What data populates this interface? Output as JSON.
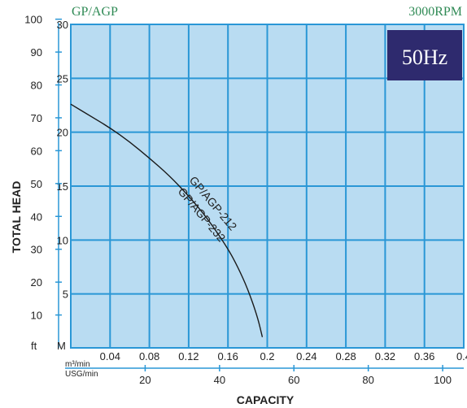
{
  "header": {
    "model": "GP/AGP",
    "speed": "3000RPM"
  },
  "badge": {
    "text": "50Hz",
    "bg": "#2e2a6e",
    "fg": "#ffffff"
  },
  "colors": {
    "plot_bg": "#b9dcf2",
    "grid": "#2a97d6",
    "curve": "#1a1a1a"
  },
  "chart_data": {
    "type": "line",
    "xlabel": "CAPACITY",
    "ylabel": "TOTAL HEAD",
    "x_unit_primary": "m³/min",
    "x_unit_secondary": "USG/min",
    "y_unit_primary": "M",
    "y_unit_secondary": "ft",
    "xlim": [
      0,
      0.4
    ],
    "ylim": [
      0,
      30
    ],
    "x_ticks_primary": [
      "0.04",
      "0.08",
      "0.12",
      "0.16",
      "0.2",
      "0.24",
      "0.28",
      "0.32",
      "0.36",
      "0.4"
    ],
    "x_ticks_secondary": [
      "20",
      "40",
      "60",
      "80",
      "100"
    ],
    "x_ticks_secondary_values": [
      20,
      40,
      60,
      80,
      100
    ],
    "y_ticks_primary": [
      "5",
      "10",
      "15",
      "20",
      "25",
      "30"
    ],
    "y_ticks_secondary": [
      "10",
      "20",
      "30",
      "40",
      "50",
      "60",
      "70",
      "80",
      "90",
      "100"
    ],
    "y_ticks_secondary_values": [
      10,
      20,
      30,
      40,
      50,
      60,
      70,
      80,
      90,
      100
    ],
    "grid": true,
    "series": [
      {
        "name": "GP/AGP-212 GP/AGP-232",
        "x": [
          0,
          0.02,
          0.04,
          0.06,
          0.08,
          0.1,
          0.12,
          0.14,
          0.16,
          0.17,
          0.18,
          0.19,
          0.195
        ],
        "y": [
          22.6,
          21.5,
          20.4,
          19.1,
          17.6,
          16.0,
          14.1,
          11.9,
          9.2,
          7.5,
          5.5,
          2.9,
          1.0
        ]
      }
    ],
    "curve_labels": [
      "GP/AGP-212",
      "GP/AGP-232"
    ]
  }
}
